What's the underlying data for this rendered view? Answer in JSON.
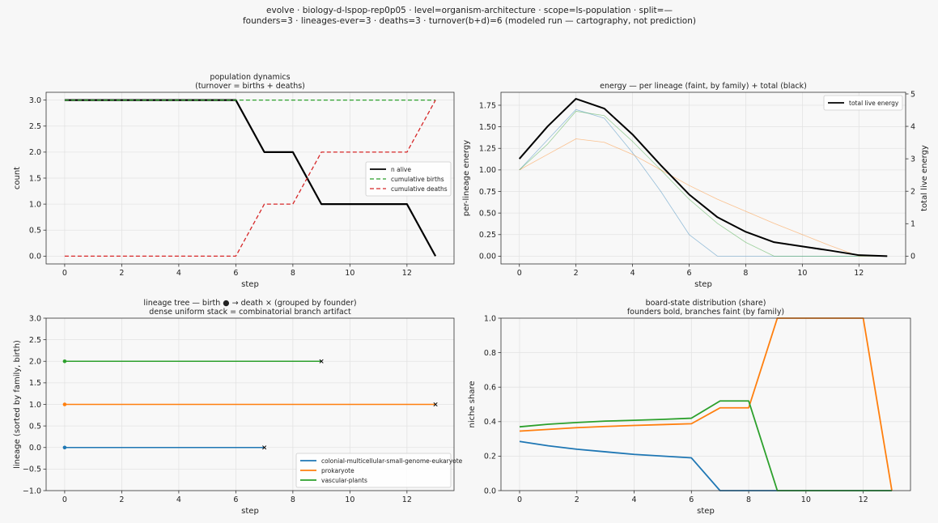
{
  "suptitle": {
    "line1": "evolve · biology-d-lspop-rep0p05 · level=organism-architecture · scope=ls-population · split=—",
    "line2": "founders=3 · lineages-ever=3 · deaths=3 · turnover(b+d)=6   (modeled run — cartography, not prediction)"
  },
  "chart_data": [
    {
      "id": "pop",
      "type": "line",
      "title": "population dynamics",
      "subtitle": "(turnover = births + deaths)",
      "xlabel": "step",
      "ylabel": "count",
      "xlim": [
        -0.65,
        13.65
      ],
      "ylim": [
        -0.15,
        3.15
      ],
      "xticks": [
        0,
        2,
        4,
        6,
        8,
        10,
        12
      ],
      "yticks": [
        0.0,
        0.5,
        1.0,
        1.5,
        2.0,
        2.5,
        3.0
      ],
      "ytick_labels": [
        "0.0",
        "0.5",
        "1.0",
        "1.5",
        "2.0",
        "2.5",
        "3.0"
      ],
      "grid": true,
      "legend": "center-right",
      "x": [
        0,
        1,
        2,
        3,
        4,
        5,
        6,
        7,
        8,
        9,
        10,
        11,
        12,
        13
      ],
      "series": [
        {
          "name": "n alive",
          "color": "#000000",
          "style": "solid",
          "width": 2.2,
          "values": [
            3,
            3,
            3,
            3,
            3,
            3,
            3,
            2,
            2,
            1,
            1,
            1,
            1,
            0
          ]
        },
        {
          "name": "cumulative births",
          "color": "#2ca02c",
          "style": "dashed",
          "width": 1.3,
          "values": [
            3,
            3,
            3,
            3,
            3,
            3,
            3,
            3,
            3,
            3,
            3,
            3,
            3,
            3
          ]
        },
        {
          "name": "cumulative deaths",
          "color": "#d62728",
          "style": "dashed",
          "width": 1.3,
          "values": [
            0,
            0,
            0,
            0,
            0,
            0,
            0,
            1,
            1,
            2,
            2,
            2,
            2,
            3
          ]
        }
      ]
    },
    {
      "id": "energy",
      "type": "line",
      "title": "energy — per lineage (faint, by family) + total (black)",
      "xlabel": "step",
      "ylabel": "per-lineage energy",
      "y2label": "total live energy",
      "xlim": [
        -0.65,
        13.65
      ],
      "ylim": [
        -0.09,
        1.9
      ],
      "y2lim": [
        -0.24,
        5.05
      ],
      "xticks": [
        0,
        2,
        4,
        6,
        8,
        10,
        12
      ],
      "yticks": [
        0.0,
        0.25,
        0.5,
        0.75,
        1.0,
        1.25,
        1.5,
        1.75
      ],
      "ytick_labels": [
        "0.00",
        "0.25",
        "0.50",
        "0.75",
        "1.00",
        "1.25",
        "1.50",
        "1.75"
      ],
      "y2ticks": [
        0,
        1,
        2,
        3,
        4,
        5
      ],
      "y2tick_labels": [
        "0",
        "1",
        "2",
        "3",
        "4",
        "5"
      ],
      "grid": true,
      "legend": "top-right",
      "x": [
        0,
        1,
        2,
        3,
        4,
        5,
        6,
        7,
        8,
        9,
        10,
        11,
        12,
        13
      ],
      "series": [
        {
          "color": "#1f77b4",
          "axis": "left",
          "faint": true,
          "values": [
            1.0,
            1.35,
            1.7,
            1.6,
            1.2,
            0.75,
            0.25,
            0.0,
            0.0,
            0.0,
            0.0,
            0.0,
            0.0,
            0.0
          ]
        },
        {
          "color": "#ff7f0e",
          "axis": "left",
          "faint": true,
          "values": [
            1.0,
            1.18,
            1.36,
            1.32,
            1.18,
            1.0,
            0.82,
            0.66,
            0.52,
            0.38,
            0.25,
            0.12,
            0.0,
            0.0
          ]
        },
        {
          "color": "#2ca02c",
          "axis": "left",
          "faint": true,
          "values": [
            1.0,
            1.3,
            1.68,
            1.63,
            1.33,
            1.0,
            0.66,
            0.38,
            0.16,
            0.0,
            0.0,
            0.0,
            0.0,
            0.0
          ]
        },
        {
          "name": "total live energy",
          "color": "#000000",
          "axis": "right",
          "values": [
            3.0,
            4.0,
            4.85,
            4.55,
            3.75,
            2.8,
            1.9,
            1.2,
            0.75,
            0.43,
            0.3,
            0.17,
            0.03,
            0.0
          ]
        }
      ]
    },
    {
      "id": "tree",
      "type": "line",
      "title": "lineage tree — birth ● → death ×  (grouped by founder)",
      "subtitle": "dense uniform stack = combinatorial branch artifact",
      "xlabel": "step",
      "ylabel": "lineage (sorted by family, birth)",
      "xlim": [
        -0.65,
        13.65
      ],
      "ylim": [
        -1.0,
        3.0
      ],
      "xticks": [
        0,
        2,
        4,
        6,
        8,
        10,
        12
      ],
      "yticks": [
        -1.0,
        -0.5,
        0.0,
        0.5,
        1.0,
        1.5,
        2.0,
        2.5,
        3.0
      ],
      "ytick_labels": [
        "−1.0",
        "−0.5",
        "0.0",
        "0.5",
        "1.0",
        "1.5",
        "2.0",
        "2.5",
        "3.0"
      ],
      "grid": true,
      "legend": "lower-right",
      "series": [
        {
          "name": "colonial-multicellular-small-genome-eukaryote",
          "color": "#1f77b4",
          "y": 0,
          "birth": 0,
          "death": 7
        },
        {
          "name": "prokaryote",
          "color": "#ff7f0e",
          "y": 1,
          "birth": 0,
          "death": 13
        },
        {
          "name": "vascular-plants",
          "color": "#2ca02c",
          "y": 2,
          "birth": 0,
          "death": 9
        }
      ]
    },
    {
      "id": "share",
      "type": "line",
      "title": "board-state distribution (share)",
      "subtitle": "founders bold, branches faint (by family)",
      "xlabel": "step",
      "ylabel": "niche share",
      "xlim": [
        -0.65,
        13.65
      ],
      "ylim": [
        0.0,
        1.0
      ],
      "xticks": [
        0,
        2,
        4,
        6,
        8,
        10,
        12
      ],
      "yticks": [
        0.0,
        0.2,
        0.4,
        0.6,
        0.8,
        1.0
      ],
      "ytick_labels": [
        "0.0",
        "0.2",
        "0.4",
        "0.6",
        "0.8",
        "1.0"
      ],
      "grid": true,
      "x": [
        0,
        1,
        2,
        3,
        4,
        5,
        6,
        7,
        8,
        9,
        10,
        11,
        12,
        13
      ],
      "series": [
        {
          "color": "#1f77b4",
          "values": [
            0.285,
            0.26,
            0.24,
            0.225,
            0.21,
            0.2,
            0.19,
            0.0,
            0.0,
            0.0,
            0.0,
            0.0,
            0.0,
            0.0
          ]
        },
        {
          "color": "#ff7f0e",
          "values": [
            0.345,
            0.355,
            0.365,
            0.372,
            0.378,
            0.383,
            0.388,
            0.48,
            0.48,
            1.0,
            1.0,
            1.0,
            1.0,
            0.0
          ]
        },
        {
          "color": "#2ca02c",
          "values": [
            0.37,
            0.385,
            0.395,
            0.403,
            0.408,
            0.413,
            0.42,
            0.52,
            0.52,
            0.0,
            0.0,
            0.0,
            0.0,
            0.0
          ]
        }
      ]
    }
  ]
}
